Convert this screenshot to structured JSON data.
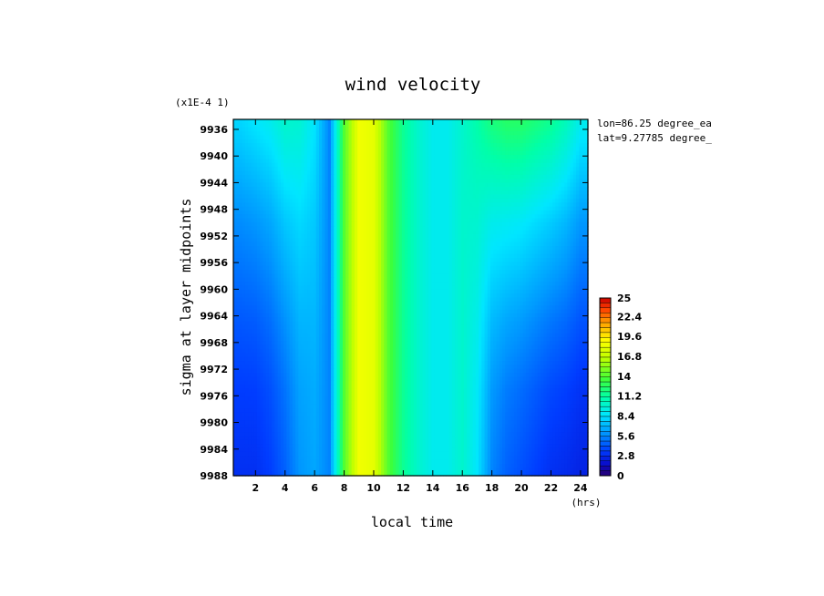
{
  "chart_data": {
    "type": "heatmap",
    "title": "wind velocity",
    "scale_note": "(x1E-4 1)",
    "xlabel": "local time",
    "xunit": "(hrs)",
    "ylabel": "sigma at layer midpoints",
    "annotations": [
      "lon=86.25 degree_ea",
      "lat=9.27785 degree_"
    ],
    "x_ticks": [
      "2",
      "4",
      "6",
      "8",
      "10",
      "12",
      "14",
      "16",
      "18",
      "20",
      "22",
      "24"
    ],
    "x_tick_values": [
      2,
      4,
      6,
      8,
      10,
      12,
      14,
      16,
      18,
      20,
      22,
      24
    ],
    "xlim": [
      0.5,
      24.5
    ],
    "y_ticks": [
      "9936",
      "9940",
      "9944",
      "9948",
      "9952",
      "9956",
      "9960",
      "9964",
      "9968",
      "9972",
      "9976",
      "9980",
      "9984",
      "9988"
    ],
    "y_tick_values": [
      9936,
      9940,
      9944,
      9948,
      9952,
      9956,
      9960,
      9964,
      9968,
      9972,
      9976,
      9980,
      9984,
      9988
    ],
    "ylim": [
      9934.5,
      9988
    ],
    "y_inverted": true,
    "grid": false,
    "colorbar": {
      "ticks": [
        "25",
        "22.4",
        "19.6",
        "16.8",
        "14",
        "11.2",
        "8.4",
        "5.6",
        "2.8",
        "0"
      ],
      "tick_values": [
        25,
        22.4,
        19.6,
        16.8,
        14,
        11.2,
        8.4,
        5.6,
        2.8,
        0
      ],
      "range": [
        0,
        25
      ]
    },
    "x": [
      1,
      2,
      3,
      4,
      5,
      6,
      7,
      8,
      9,
      10,
      11,
      12,
      13,
      14,
      15,
      16,
      17,
      18,
      19,
      20,
      21,
      22,
      23,
      24
    ],
    "y_levels": [
      9935,
      9950,
      9965,
      9975,
      9988
    ],
    "z_top": [
      8.0,
      8.5,
      9.0,
      10.0,
      9.8,
      8.5,
      5.5,
      14.0,
      18.5,
      18.0,
      14.0,
      11.5,
      10.0,
      9.0,
      9.0,
      10.0,
      11.0,
      12.0,
      12.5,
      12.5,
      12.0,
      11.5,
      10.5,
      9.0
    ],
    "z_bottom": [
      3.0,
      3.0,
      3.5,
      4.5,
      6.0,
      6.5,
      5.5,
      14.0,
      18.5,
      18.0,
      14.0,
      11.5,
      10.0,
      9.0,
      9.0,
      10.0,
      8.5,
      5.5,
      4.5,
      4.0,
      3.5,
      3.0,
      2.8,
      2.5
    ],
    "z_profile_weights": [
      0.0,
      0.45,
      0.75,
      0.9,
      1.0
    ]
  }
}
